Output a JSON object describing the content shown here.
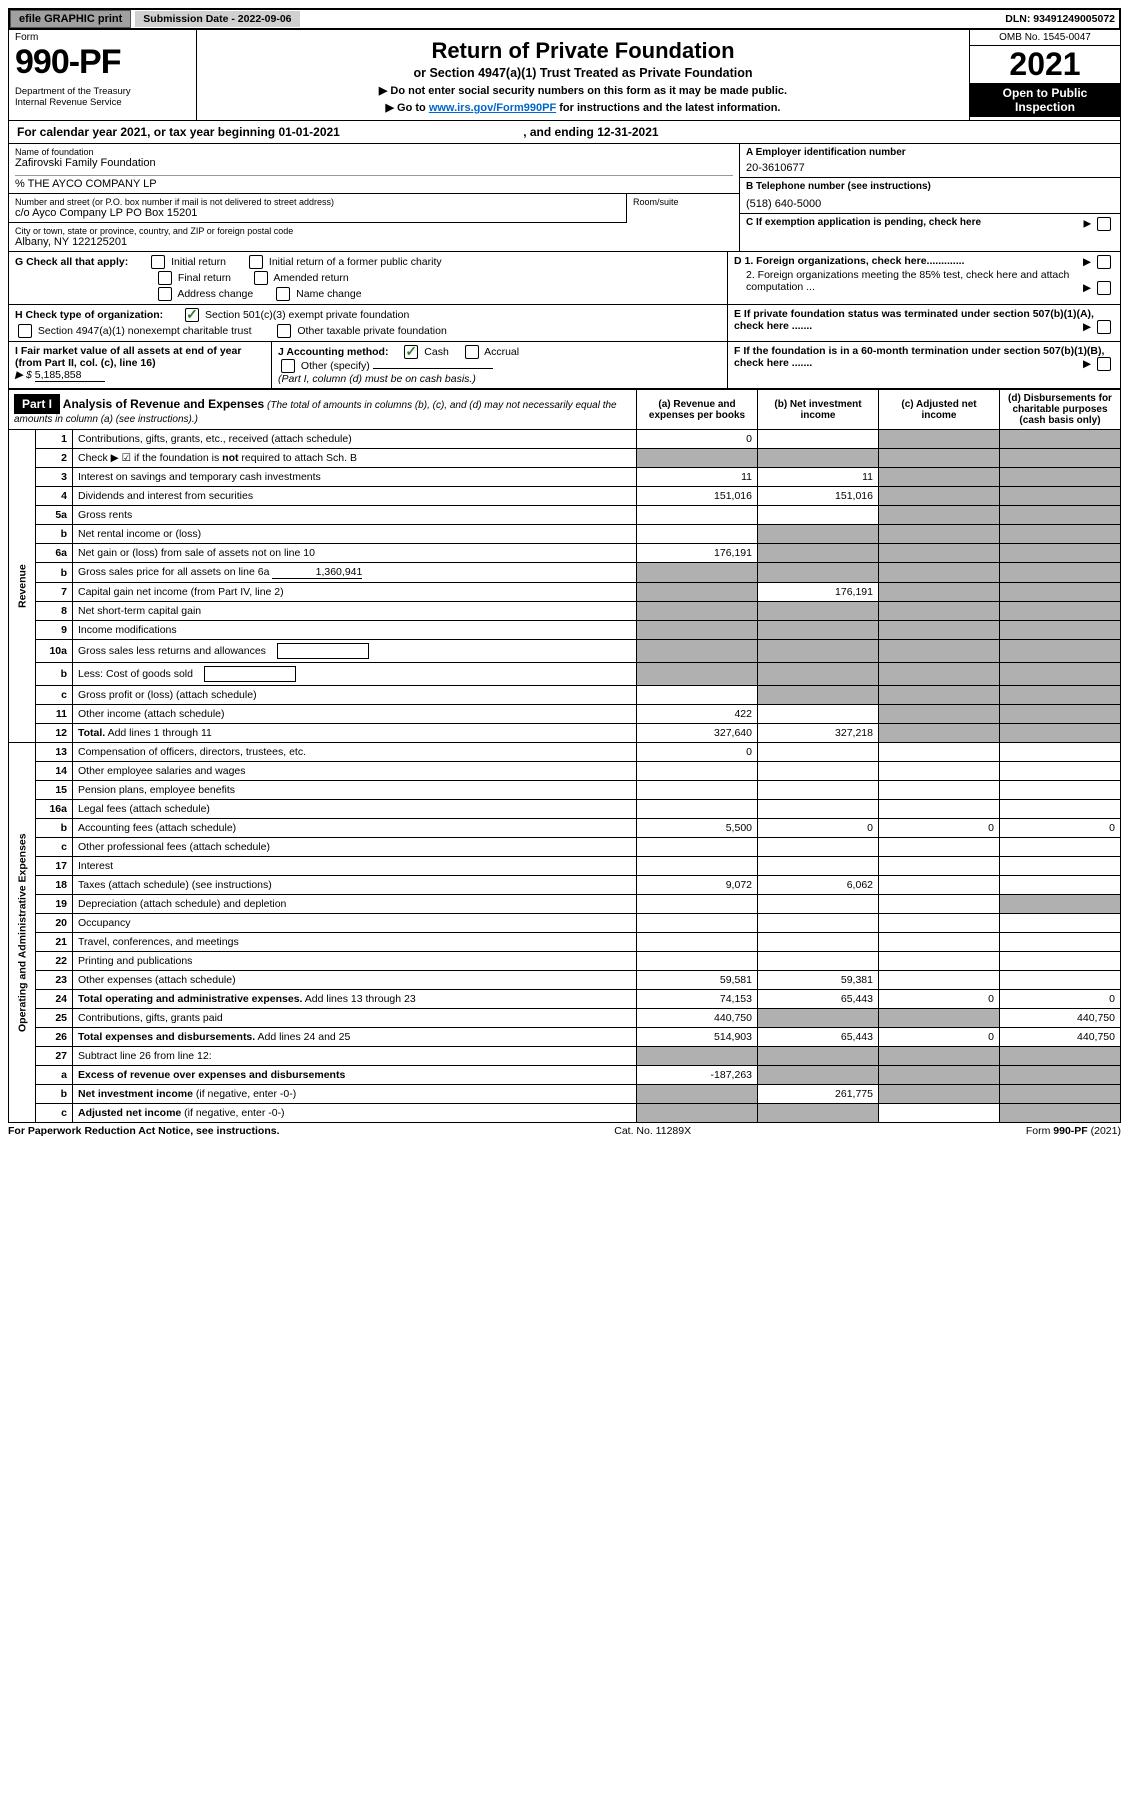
{
  "topbar": {
    "efile": "efile GRAPHIC print",
    "sub_label": "Submission Date - 2022-09-06",
    "dln": "DLN: 93491249005072"
  },
  "header": {
    "form_label": "Form",
    "form_number": "990-PF",
    "dept": "Department of the Treasury\nInternal Revenue Service",
    "title": "Return of Private Foundation",
    "subtitle": "or Section 4947(a)(1) Trust Treated as Private Foundation",
    "instr1": "▶ Do not enter social security numbers on this form as it may be made public.",
    "instr2_pre": "▶ Go to ",
    "instr2_link": "www.irs.gov/Form990PF",
    "instr2_post": " for instructions and the latest information.",
    "omb": "OMB No. 1545-0047",
    "year": "2021",
    "open": "Open to Public Inspection"
  },
  "cal": {
    "text_pre": "For calendar year 2021, or tax year beginning ",
    "begin": "01-01-2021",
    "mid": " , and ending ",
    "end": "12-31-2021"
  },
  "entity": {
    "name_lbl": "Name of foundation",
    "name": "Zafirovski Family Foundation",
    "care_of": "% THE AYCO COMPANY LP",
    "addr_lbl": "Number and street (or P.O. box number if mail is not delivered to street address)",
    "addr": "c/o Ayco Company LP PO Box 15201",
    "room_lbl": "Room/suite",
    "city_lbl": "City or town, state or province, country, and ZIP or foreign postal code",
    "city": "Albany, NY  122125201",
    "a_lbl": "A Employer identification number",
    "a_val": "20-3610677",
    "b_lbl": "B Telephone number (see instructions)",
    "b_val": "(518) 640-5000",
    "c_lbl": "C If exemption application is pending, check here",
    "d1": "D 1. Foreign organizations, check here.............",
    "d2": "2. Foreign organizations meeting the 85% test, check here and attach computation ...",
    "e_lbl": "E  If private foundation status was terminated under section 507(b)(1)(A), check here .......",
    "f_lbl": "F  If the foundation is in a 60-month termination under section 507(b)(1)(B), check here ......."
  },
  "g": {
    "lbl": "G Check all that apply:",
    "opts": [
      "Initial return",
      "Initial return of a former public charity",
      "Final return",
      "Amended return",
      "Address change",
      "Name change"
    ]
  },
  "h": {
    "lbl": "H Check type of organization:",
    "o1": "Section 501(c)(3) exempt private foundation",
    "o2": "Section 4947(a)(1) nonexempt charitable trust",
    "o3": "Other taxable private foundation"
  },
  "i": {
    "lbl": "I Fair market value of all assets at end of year (from Part II, col. (c), line 16)",
    "val": "5,185,858"
  },
  "j": {
    "lbl": "J Accounting method:",
    "o1": "Cash",
    "o2": "Accrual",
    "o3": "Other (specify)",
    "note": "(Part I, column (d) must be on cash basis.)"
  },
  "part1": {
    "header": "Part I",
    "title": "Analysis of Revenue and Expenses",
    "title_note": "(The total of amounts in columns (b), (c), and (d) may not necessarily equal the amounts in column (a) (see instructions).)",
    "cols": {
      "a": "(a) Revenue and expenses per books",
      "b": "(b) Net investment income",
      "c": "(c) Adjusted net income",
      "d": "(d) Disbursements for charitable purposes (cash basis only)"
    },
    "vlabels": {
      "rev": "Revenue",
      "exp": "Operating and Administrative Expenses"
    }
  },
  "rows": [
    {
      "n": "1",
      "desc": "Contributions, gifts, grants, etc., received (attach schedule)",
      "a": "0"
    },
    {
      "n": "2",
      "desc": "Check ▶ ☑ if the foundation is <b>not</b> required to attach Sch. B",
      "shadeA": true,
      "shadeB": true,
      "shadeC": true,
      "shadeD": true,
      "checked": true
    },
    {
      "n": "3",
      "desc": "Interest on savings and temporary cash investments",
      "a": "11",
      "b": "11"
    },
    {
      "n": "4",
      "desc": "Dividends and interest from securities",
      "a": "151,016",
      "b": "151,016"
    },
    {
      "n": "5a",
      "desc": "Gross rents"
    },
    {
      "n": "b",
      "desc": "Net rental income or (loss)",
      "shadeB": true,
      "shadeC": true,
      "shadeD": true,
      "underline": true
    },
    {
      "n": "6a",
      "desc": "Net gain or (loss) from sale of assets not on line 10",
      "a": "176,191",
      "shadeB": true
    },
    {
      "n": "b",
      "desc": "Gross sales price for all assets on line 6a",
      "inline_val": "1,360,941",
      "shadeA": true,
      "shadeB": true,
      "shadeC": true,
      "shadeD": true
    },
    {
      "n": "7",
      "desc": "Capital gain net income (from Part IV, line 2)",
      "shadeA": true,
      "b": "176,191"
    },
    {
      "n": "8",
      "desc": "Net short-term capital gain",
      "shadeA": true,
      "shadeB": true
    },
    {
      "n": "9",
      "desc": "Income modifications",
      "shadeA": true,
      "shadeB": true
    },
    {
      "n": "10a",
      "desc": "Gross sales less returns and allowances",
      "shadeA": true,
      "shadeB": true,
      "shadeC": true,
      "shadeD": true,
      "box": true
    },
    {
      "n": "b",
      "desc": "Less: Cost of goods sold",
      "shadeA": true,
      "shadeB": true,
      "shadeC": true,
      "shadeD": true,
      "box": true
    },
    {
      "n": "c",
      "desc": "Gross profit or (loss) (attach schedule)",
      "shadeB": true
    },
    {
      "n": "11",
      "desc": "Other income (attach schedule)",
      "a": "422"
    },
    {
      "n": "12",
      "desc": "<b>Total.</b> Add lines 1 through 11",
      "a": "327,640",
      "b": "327,218",
      "bold": true
    },
    {
      "n": "13",
      "desc": "Compensation of officers, directors, trustees, etc.",
      "a": "0"
    },
    {
      "n": "14",
      "desc": "Other employee salaries and wages"
    },
    {
      "n": "15",
      "desc": "Pension plans, employee benefits"
    },
    {
      "n": "16a",
      "desc": "Legal fees (attach schedule)"
    },
    {
      "n": "b",
      "desc": "Accounting fees (attach schedule)",
      "a": "5,500",
      "b": "0",
      "c": "0",
      "d": "0"
    },
    {
      "n": "c",
      "desc": "Other professional fees (attach schedule)"
    },
    {
      "n": "17",
      "desc": "Interest"
    },
    {
      "n": "18",
      "desc": "Taxes (attach schedule) (see instructions)",
      "a": "9,072",
      "b": "6,062"
    },
    {
      "n": "19",
      "desc": "Depreciation (attach schedule) and depletion",
      "shadeD": true
    },
    {
      "n": "20",
      "desc": "Occupancy"
    },
    {
      "n": "21",
      "desc": "Travel, conferences, and meetings"
    },
    {
      "n": "22",
      "desc": "Printing and publications"
    },
    {
      "n": "23",
      "desc": "Other expenses (attach schedule)",
      "a": "59,581",
      "b": "59,381"
    },
    {
      "n": "24",
      "desc": "<b>Total operating and administrative expenses.</b> Add lines 13 through 23",
      "a": "74,153",
      "b": "65,443",
      "c": "0",
      "d": "0"
    },
    {
      "n": "25",
      "desc": "Contributions, gifts, grants paid",
      "a": "440,750",
      "shadeB": true,
      "shadeC": true,
      "d": "440,750"
    },
    {
      "n": "26",
      "desc": "<b>Total expenses and disbursements.</b> Add lines 24 and 25",
      "a": "514,903",
      "b": "65,443",
      "c": "0",
      "d": "440,750"
    },
    {
      "n": "27",
      "desc": "Subtract line 26 from line 12:",
      "shadeA": true,
      "shadeB": true,
      "shadeC": true,
      "shadeD": true
    },
    {
      "n": "a",
      "desc": "<b>Excess of revenue over expenses and disbursements</b>",
      "a": "-187,263",
      "shadeB": true,
      "shadeC": true,
      "shadeD": true
    },
    {
      "n": "b",
      "desc": "<b>Net investment income</b> (if negative, enter -0-)",
      "shadeA": true,
      "b": "261,775",
      "shadeC": true,
      "shadeD": true
    },
    {
      "n": "c",
      "desc": "<b>Adjusted net income</b> (if negative, enter -0-)",
      "shadeA": true,
      "shadeB": true,
      "shadeD": true
    }
  ],
  "footer": {
    "left": "For Paperwork Reduction Act Notice, see instructions.",
    "mid": "Cat. No. 11289X",
    "right": "Form 990-PF (2021)"
  }
}
